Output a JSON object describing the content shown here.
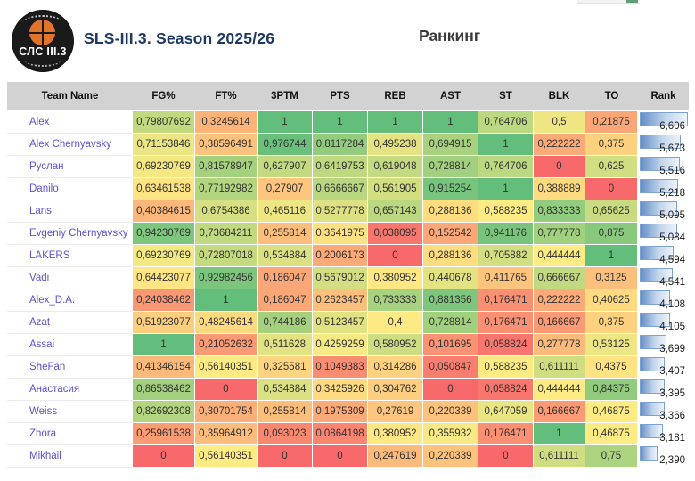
{
  "page": {
    "brand": {
      "logo_text": "СЛС III.3"
    },
    "title": "SLS-III.3. Season 2025/26",
    "section_title": "Ранкинг"
  },
  "table": {
    "columns": [
      "Team Name",
      "FG%",
      "FT%",
      "3PTM",
      "PTS",
      "REB",
      "AST",
      "ST",
      "BLK",
      "TO",
      "Rank"
    ],
    "rows": [
      {
        "team": "Alex",
        "values": [
          "0,79807692",
          "0,3245614",
          "1",
          "1",
          "1",
          "1",
          "0,764706",
          "0,5",
          "0,21875"
        ],
        "rank": "6,606"
      },
      {
        "team": "Alex Chernyavsky",
        "values": [
          "0,71153846",
          "0,38596491",
          "0,976744",
          "0,8117284",
          "0,495238",
          "0,694915",
          "1",
          "0,222222",
          "0,375"
        ],
        "rank": "5,673"
      },
      {
        "team": "Руслан",
        "values": [
          "0,69230769",
          "0,81578947",
          "0,627907",
          "0,6419753",
          "0,619048",
          "0,728814",
          "0,764706",
          "0",
          "0,625"
        ],
        "rank": "5,516"
      },
      {
        "team": "Danilo",
        "values": [
          "0,63461538",
          "0,77192982",
          "0,27907",
          "0,6666667",
          "0,561905",
          "0,915254",
          "1",
          "0,388889",
          "0"
        ],
        "rank": "5,218"
      },
      {
        "team": "Lans",
        "values": [
          "0,40384615",
          "0,6754386",
          "0,465116",
          "0,5277778",
          "0,657143",
          "0,288136",
          "0,588235",
          "0,833333",
          "0,65625"
        ],
        "rank": "5,095"
      },
      {
        "team": "Evgeniy Chernyavsky",
        "values": [
          "0,94230769",
          "0,73684211",
          "0,255814",
          "0,3641975",
          "0,038095",
          "0,152542",
          "0,941176",
          "0,777778",
          "0,875"
        ],
        "rank": "5,084"
      },
      {
        "team": "LAKERS",
        "values": [
          "0,69230769",
          "0,72807018",
          "0,534884",
          "0,2006173",
          "0",
          "0,288136",
          "0,705882",
          "0,444444",
          "1"
        ],
        "rank": "4,594"
      },
      {
        "team": "Vadi",
        "values": [
          "0,64423077",
          "0,92982456",
          "0,186047",
          "0,5679012",
          "0,380952",
          "0,440678",
          "0,411765",
          "0,666667",
          "0,3125"
        ],
        "rank": "4,541"
      },
      {
        "team": "Alex_D.A.",
        "values": [
          "0,24038462",
          "1",
          "0,186047",
          "0,2623457",
          "0,733333",
          "0,881356",
          "0,176471",
          "0,222222",
          "0,40625"
        ],
        "rank": "4,108"
      },
      {
        "team": "Azat",
        "values": [
          "0,51923077",
          "0,48245614",
          "0,744186",
          "0,5123457",
          "0,4",
          "0,728814",
          "0,176471",
          "0,166667",
          "0,375"
        ],
        "rank": "4,105"
      },
      {
        "team": "Assai",
        "values": [
          "1",
          "0,21052632",
          "0,511628",
          "0,4259259",
          "0,580952",
          "0,101695",
          "0,058824",
          "0,277778",
          "0,53125"
        ],
        "rank": "3,699"
      },
      {
        "team": "SheFan",
        "values": [
          "0,41346154",
          "0,56140351",
          "0,325581",
          "0,1049383",
          "0,314286",
          "0,050847",
          "0,588235",
          "0,611111",
          "0,4375"
        ],
        "rank": "3,407"
      },
      {
        "team": "Анастасия",
        "values": [
          "0,86538462",
          "0",
          "0,534884",
          "0,3425926",
          "0,304762",
          "0",
          "0,058824",
          "0,444444",
          "0,84375"
        ],
        "rank": "3,395"
      },
      {
        "team": "Weiss",
        "values": [
          "0,82692308",
          "0,30701754",
          "0,255814",
          "0,1975309",
          "0,27619",
          "0,220339",
          "0,647059",
          "0,166667",
          "0,46875"
        ],
        "rank": "3,366"
      },
      {
        "team": "Zhora",
        "values": [
          "0,25961538",
          "0,35964912",
          "0,093023",
          "0,0864198",
          "0,380952",
          "0,355932",
          "0,176471",
          "1",
          "0,46875"
        ],
        "rank": "3,181"
      },
      {
        "team": "Mikhail",
        "values": [
          "0",
          "0,56140351",
          "0",
          "0",
          "0,247619",
          "0,220339",
          "0",
          "0,611111",
          "0,75"
        ],
        "rank": "2,390"
      }
    ],
    "heatmap": {
      "low": "#F8696B",
      "mid": "#FFEB84",
      "high": "#63BE7B"
    },
    "rank_bar": {
      "border": "#7DA2D1",
      "fill_left": "#638EC6",
      "fill_mid": "#C3D6EC",
      "fill_right": "#EDF3FB"
    },
    "team_link_color": "#5B52CE",
    "title_color": "#1F3864"
  }
}
